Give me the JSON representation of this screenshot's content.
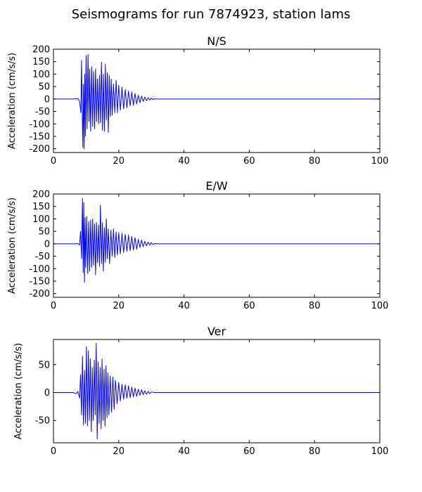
{
  "figure_title": "Seismograms for run 7874923, station lams",
  "chart_data": [
    {
      "type": "line",
      "title": "N/S",
      "ylabel": "Acceleration (cm/s/s)",
      "xlabel": "",
      "xlim": [
        0,
        100
      ],
      "ylim": [
        -215,
        200
      ],
      "xticks": [
        0,
        20,
        40,
        60,
        80,
        100
      ],
      "yticks": [
        -200,
        -150,
        -100,
        -50,
        0,
        50,
        100,
        150,
        200
      ],
      "color": "#0000ff",
      "grid": false,
      "series": [
        {
          "x": [
            0,
            6,
            7.5,
            8.0,
            8.4,
            8.6,
            8.8,
            9.0,
            9.2,
            9.4,
            9.6,
            9.8,
            10.0,
            10.3,
            10.6,
            10.9,
            11.1,
            11.4,
            11.7,
            12.0,
            12.3,
            12.6,
            12.9,
            13.2,
            13.5,
            13.8,
            14.1,
            14.4,
            14.7,
            15.0,
            15.3,
            15.6,
            15.9,
            16.2,
            16.5,
            16.8,
            17.1,
            17.4,
            17.7,
            18.0,
            18.4,
            18.8,
            19.2,
            19.6,
            20.0,
            20.5,
            21.0,
            21.5,
            22.0,
            22.5,
            23.0,
            23.5,
            24.0,
            24.5,
            25.0,
            25.5,
            26.0,
            26.5,
            27.0,
            27.5,
            28.0,
            28.5,
            29.0,
            29.5,
            30.0,
            30.5,
            31,
            32,
            100
          ],
          "y": [
            0,
            0,
            2,
            -10,
            -55,
            155,
            -40,
            -195,
            60,
            -200,
            100,
            -150,
            175,
            -120,
            178,
            -90,
            120,
            -130,
            130,
            -110,
            110,
            -120,
            120,
            -90,
            80,
            -100,
            95,
            -95,
            148,
            -125,
            100,
            -130,
            140,
            -85,
            105,
            -135,
            95,
            -70,
            80,
            -65,
            60,
            -55,
            75,
            -55,
            55,
            -45,
            48,
            -40,
            38,
            -35,
            32,
            -28,
            28,
            -25,
            22,
            -20,
            15,
            -15,
            12,
            -10,
            8,
            -7,
            5,
            -4,
            3,
            -2,
            1,
            0,
            0
          ]
        }
      ]
    },
    {
      "type": "line",
      "title": "E/W",
      "ylabel": "Acceleration (cm/s/s)",
      "xlabel": "",
      "xlim": [
        0,
        100
      ],
      "ylim": [
        -215,
        200
      ],
      "xticks": [
        0,
        20,
        40,
        60,
        80,
        100
      ],
      "yticks": [
        -200,
        -150,
        -100,
        -50,
        0,
        50,
        100,
        150,
        200
      ],
      "color": "#0000ff",
      "grid": false,
      "series": [
        {
          "x": [
            0,
            6,
            7.5,
            8.0,
            8.3,
            8.6,
            8.9,
            9.1,
            9.3,
            9.5,
            9.7,
            9.9,
            10.2,
            10.5,
            10.8,
            11.1,
            11.4,
            11.7,
            12.0,
            12.3,
            12.6,
            12.9,
            13.2,
            13.5,
            13.8,
            14.1,
            14.4,
            14.7,
            15.0,
            15.3,
            15.6,
            15.9,
            16.2,
            16.5,
            16.8,
            17.2,
            17.6,
            18.0,
            18.4,
            18.8,
            19.2,
            19.6,
            20.0,
            20.5,
            21.0,
            21.5,
            22.0,
            22.5,
            23.0,
            23.5,
            24.0,
            24.5,
            25.0,
            25.5,
            26.0,
            26.5,
            27.0,
            27.5,
            28.0,
            28.5,
            29.0,
            29.5,
            30.0,
            30.5,
            31,
            32,
            100
          ],
          "y": [
            0,
            0,
            1,
            -5,
            50,
            -60,
            182,
            -115,
            165,
            -155,
            105,
            -95,
            110,
            -120,
            90,
            -110,
            95,
            -95,
            100,
            -85,
            80,
            -125,
            85,
            -75,
            75,
            -90,
            155,
            -80,
            85,
            -110,
            65,
            -75,
            100,
            -60,
            60,
            -80,
            55,
            -50,
            60,
            -55,
            48,
            -45,
            45,
            -40,
            42,
            -35,
            38,
            -30,
            35,
            -28,
            30,
            -25,
            25,
            -22,
            18,
            -15,
            15,
            -12,
            10,
            -8,
            7,
            -5,
            4,
            -3,
            1,
            0,
            0
          ]
        }
      ]
    },
    {
      "type": "line",
      "title": "Ver",
      "ylabel": "Acceleration (cm/s/s)",
      "xlabel": "",
      "xlim": [
        0,
        100
      ],
      "ylim": [
        -90,
        95
      ],
      "xticks": [
        0,
        20,
        40,
        60,
        80,
        100
      ],
      "yticks": [
        -50,
        0,
        50
      ],
      "color": "#0000ff",
      "grid": false,
      "series": [
        {
          "x": [
            0,
            6,
            7.0,
            7.5,
            8.0,
            8.3,
            8.6,
            8.9,
            9.2,
            9.5,
            9.8,
            10.1,
            10.4,
            10.7,
            11.0,
            11.3,
            11.6,
            11.9,
            12.2,
            12.5,
            12.8,
            13.1,
            13.4,
            13.7,
            14.0,
            14.3,
            14.6,
            14.9,
            15.2,
            15.5,
            15.8,
            16.1,
            16.4,
            16.7,
            17.0,
            17.4,
            17.8,
            18.2,
            18.6,
            19.0,
            19.5,
            20.0,
            20.5,
            21.0,
            21.5,
            22.0,
            22.5,
            23.0,
            23.5,
            24.0,
            24.5,
            25.0,
            25.5,
            26.0,
            26.5,
            27.0,
            27.5,
            28.0,
            28.5,
            29.0,
            29.5,
            30.0,
            31,
            32,
            100
          ],
          "y": [
            0,
            0,
            -2,
            2,
            -10,
            32,
            -40,
            65,
            -58,
            40,
            -55,
            82,
            -60,
            75,
            -50,
            60,
            -70,
            45,
            -50,
            58,
            -40,
            88,
            -83,
            55,
            -55,
            45,
            -65,
            60,
            -50,
            42,
            -60,
            48,
            -45,
            35,
            -40,
            30,
            -35,
            28,
            -30,
            22,
            -20,
            18,
            -15,
            15,
            -12,
            14,
            -10,
            12,
            -9,
            10,
            -8,
            8,
            -7,
            6,
            -5,
            5,
            -4,
            3,
            -3,
            2,
            -2,
            1,
            0,
            0,
            0
          ]
        }
      ]
    }
  ]
}
